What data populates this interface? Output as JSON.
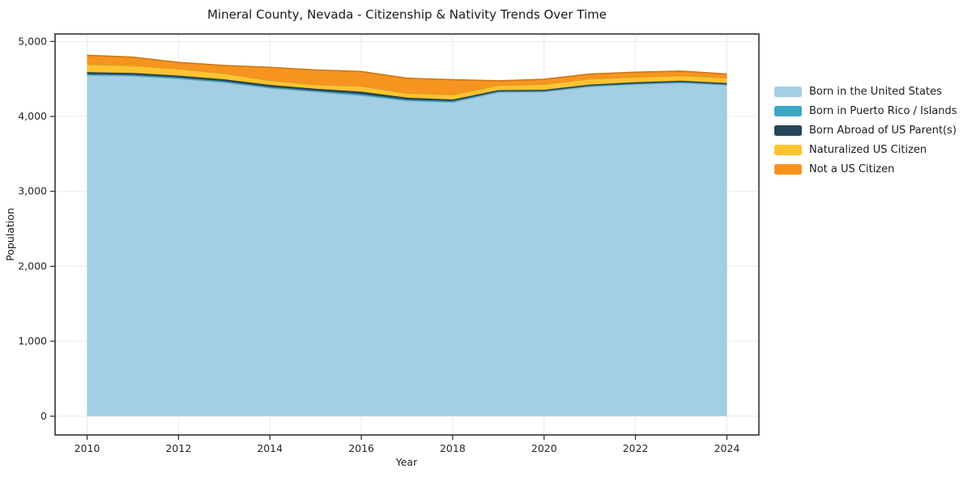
{
  "title": "Mineral County, Nevada - Citizenship & Nativity Trends Over Time",
  "chart_data": {
    "type": "area",
    "stacked": true,
    "title": "Mineral County, Nevada - Citizenship & Nativity Trends Over Time",
    "xlabel": "Year",
    "ylabel": "Population",
    "x": [
      2010,
      2011,
      2012,
      2013,
      2014,
      2015,
      2016,
      2017,
      2018,
      2019,
      2020,
      2021,
      2022,
      2023,
      2024
    ],
    "series": [
      {
        "name": "Born in the United States",
        "color": "#a3cee4",
        "values": [
          4550,
          4540,
          4505,
          4455,
          4380,
          4330,
          4280,
          4210,
          4190,
          4325,
          4330,
          4400,
          4430,
          4450,
          4420
        ]
      },
      {
        "name": "Born in Puerto Rico / Islands",
        "color": "#38a8c5",
        "values": [
          15,
          15,
          15,
          15,
          15,
          15,
          20,
          15,
          15,
          10,
          10,
          10,
          10,
          10,
          10
        ]
      },
      {
        "name": "Born Abroad of US Parent(s)",
        "color": "#26465a",
        "values": [
          25,
          25,
          25,
          25,
          25,
          25,
          30,
          25,
          20,
          15,
          15,
          15,
          15,
          15,
          15
        ]
      },
      {
        "name": "Naturalized US Citizen",
        "color": "#fdc330",
        "values": [
          105,
          100,
          90,
          80,
          60,
          55,
          75,
          60,
          65,
          65,
          75,
          75,
          70,
          70,
          70
        ]
      },
      {
        "name": "Not a US Citizen",
        "color": "#f7941f",
        "values": [
          120,
          110,
          85,
          105,
          175,
          195,
          195,
          200,
          200,
          60,
          65,
          65,
          65,
          60,
          50
        ]
      }
    ],
    "xticks": [
      2010,
      2012,
      2014,
      2016,
      2018,
      2020,
      2022,
      2024
    ],
    "xtick_labels": [
      "2010",
      "2012",
      "2014",
      "2016",
      "2018",
      "2020",
      "2022",
      "2024"
    ],
    "yticks": [
      0,
      1000,
      2000,
      3000,
      4000,
      5000
    ],
    "ytick_labels": [
      "0",
      "1,000",
      "2,000",
      "3,000",
      "4,000",
      "5,000"
    ],
    "xlim": [
      2009.3,
      2024.7
    ],
    "ylim": [
      -250,
      5100
    ],
    "grid": true,
    "legend_position": "right",
    "colors": {
      "spine": "#262626",
      "grid": "#e8eaed",
      "tick_text": "#262626",
      "axis_label_text": "#1a1a1a"
    }
  }
}
